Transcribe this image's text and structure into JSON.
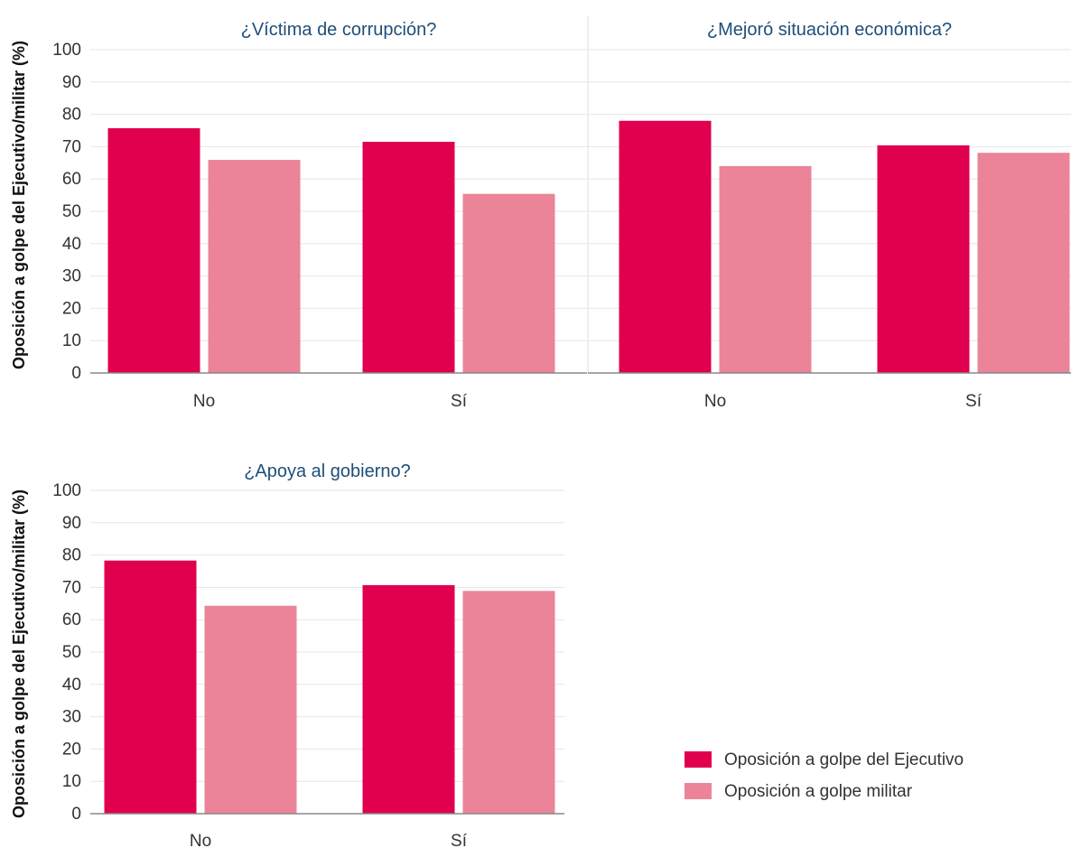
{
  "colors": {
    "executive": "#E0004F",
    "military": "#EB8498",
    "title": "#1F4E79",
    "grid": "#E6E6E6",
    "axis": "#888888",
    "text": "#333333"
  },
  "y_axis_label": "Oposición a golpe del Ejecutivo/militar (%)",
  "legend": [
    {
      "label": "Oposición a golpe del Ejecutivo",
      "color": "#E0004F"
    },
    {
      "label": "Oposición a golpe militar",
      "color": "#EB8498"
    }
  ],
  "chart_data": [
    {
      "type": "bar",
      "title": "¿Víctima de corrupción?",
      "categories": [
        "No",
        "Sí"
      ],
      "series": [
        {
          "name": "Oposición a golpe del Ejecutivo",
          "values": [
            75.7,
            71.5
          ]
        },
        {
          "name": "Oposición a golpe militar",
          "values": [
            65.9,
            55.4
          ]
        }
      ],
      "ylabel": "Oposición a golpe del Ejecutivo/militar (%)",
      "ylim": [
        0,
        100
      ],
      "yticks": [
        0,
        10,
        20,
        30,
        40,
        50,
        60,
        70,
        80,
        90,
        100
      ],
      "grid": true
    },
    {
      "type": "bar",
      "title": "¿Mejoró situación económica?",
      "categories": [
        "No",
        "Sí"
      ],
      "series": [
        {
          "name": "Oposición a golpe del Ejecutivo",
          "values": [
            78.0,
            70.4
          ]
        },
        {
          "name": "Oposición a golpe militar",
          "values": [
            64.0,
            68.1
          ]
        }
      ],
      "ylim": [
        0,
        100
      ],
      "grid": true
    },
    {
      "type": "bar",
      "title": "¿Apoya al gobierno?",
      "categories": [
        "No",
        "Sí"
      ],
      "series": [
        {
          "name": "Oposición a golpe del Ejecutivo",
          "values": [
            78.3,
            70.7
          ]
        },
        {
          "name": "Oposición a golpe militar",
          "values": [
            64.3,
            68.9
          ]
        }
      ],
      "ylabel": "Oposición a golpe del Ejecutivo/militar (%)",
      "ylim": [
        0,
        100
      ],
      "yticks": [
        0,
        10,
        20,
        30,
        40,
        50,
        60,
        70,
        80,
        90,
        100
      ],
      "grid": true
    }
  ]
}
